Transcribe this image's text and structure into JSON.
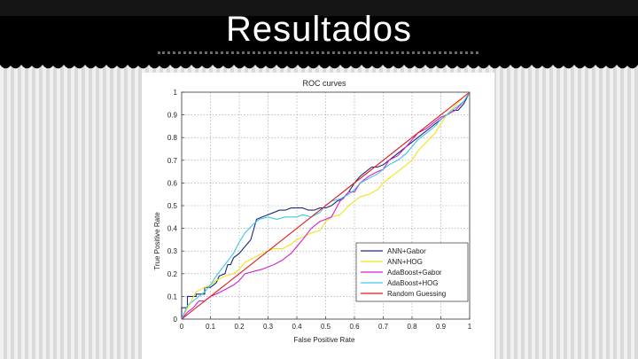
{
  "slide": {
    "title": "Resultados"
  },
  "chart_data": {
    "type": "line",
    "title": "ROC curves",
    "xlabel": "False Positive Rate",
    "ylabel": "True Positive Rate",
    "xlim": [
      0,
      1
    ],
    "ylim": [
      0,
      1
    ],
    "xticks": [
      "0",
      "0.1",
      "0.2",
      "0.3",
      "0.4",
      "0.5",
      "0.6",
      "0.7",
      "0.8",
      "0.9",
      "1"
    ],
    "yticks": [
      "0",
      "0.1",
      "0.2",
      "0.3",
      "0.4",
      "0.5",
      "0.6",
      "0.7",
      "0.8",
      "0.9",
      "1"
    ],
    "grid": true,
    "legend_position": "bottom-right",
    "series": [
      {
        "name": "ANN+Gabor",
        "color": "#1a2a80",
        "x": [
          0,
          0,
          0.02,
          0.02,
          0.05,
          0.05,
          0.08,
          0.08,
          0.1,
          0.12,
          0.13,
          0.15,
          0.16,
          0.17,
          0.18,
          0.2,
          0.22,
          0.24,
          0.26,
          0.28,
          0.3,
          0.32,
          0.34,
          0.36,
          0.38,
          0.4,
          0.42,
          0.44,
          0.46,
          0.48,
          0.5,
          0.52,
          0.54,
          0.56,
          0.58,
          0.6,
          0.62,
          0.64,
          0.66,
          0.68,
          0.7,
          0.72,
          0.74,
          0.76,
          0.78,
          0.8,
          0.82,
          0.84,
          0.86,
          0.88,
          0.9,
          0.92,
          0.94,
          0.96,
          0.98,
          1
        ],
        "y": [
          0,
          0.05,
          0.05,
          0.1,
          0.1,
          0.11,
          0.11,
          0.14,
          0.14,
          0.16,
          0.19,
          0.2,
          0.24,
          0.24,
          0.27,
          0.29,
          0.32,
          0.35,
          0.44,
          0.45,
          0.46,
          0.47,
          0.48,
          0.48,
          0.49,
          0.49,
          0.49,
          0.48,
          0.48,
          0.49,
          0.49,
          0.5,
          0.52,
          0.53,
          0.56,
          0.6,
          0.63,
          0.65,
          0.67,
          0.67,
          0.68,
          0.7,
          0.72,
          0.74,
          0.76,
          0.78,
          0.8,
          0.82,
          0.84,
          0.86,
          0.88,
          0.9,
          0.92,
          0.92,
          0.95,
          1.0
        ]
      },
      {
        "name": "ANN+HOG",
        "color": "#f2e21c",
        "x": [
          0,
          0.05,
          0.08,
          0.1,
          0.12,
          0.15,
          0.18,
          0.2,
          0.22,
          0.25,
          0.28,
          0.3,
          0.32,
          0.35,
          0.38,
          0.4,
          0.42,
          0.45,
          0.48,
          0.5,
          0.52,
          0.55,
          0.58,
          0.6,
          0.62,
          0.65,
          0.68,
          0.7,
          0.72,
          0.75,
          0.78,
          0.8,
          0.82,
          0.85,
          0.88,
          0.9,
          0.92,
          0.95,
          0.98,
          1
        ],
        "y": [
          0,
          0.12,
          0.14,
          0.15,
          0.17,
          0.19,
          0.2,
          0.22,
          0.25,
          0.27,
          0.29,
          0.3,
          0.31,
          0.31,
          0.33,
          0.35,
          0.36,
          0.38,
          0.39,
          0.43,
          0.45,
          0.46,
          0.5,
          0.52,
          0.54,
          0.55,
          0.57,
          0.6,
          0.62,
          0.65,
          0.68,
          0.7,
          0.74,
          0.78,
          0.82,
          0.86,
          0.9,
          0.94,
          0.98,
          1.0
        ]
      },
      {
        "name": "AdaBoost+Gabor",
        "color": "#d41fd0",
        "x": [
          0,
          0.02,
          0.04,
          0.06,
          0.08,
          0.1,
          0.12,
          0.15,
          0.18,
          0.2,
          0.22,
          0.25,
          0.28,
          0.3,
          0.32,
          0.35,
          0.38,
          0.4,
          0.42,
          0.45,
          0.48,
          0.5,
          0.52,
          0.55,
          0.58,
          0.6,
          0.62,
          0.65,
          0.68,
          0.7,
          0.72,
          0.75,
          0.78,
          0.8,
          0.82,
          0.85,
          0.88,
          0.9,
          0.92,
          0.95,
          0.98,
          1
        ],
        "y": [
          0,
          0.03,
          0.05,
          0.08,
          0.08,
          0.1,
          0.11,
          0.13,
          0.15,
          0.17,
          0.2,
          0.21,
          0.22,
          0.23,
          0.24,
          0.26,
          0.29,
          0.32,
          0.35,
          0.4,
          0.43,
          0.44,
          0.45,
          0.52,
          0.56,
          0.56,
          0.6,
          0.63,
          0.65,
          0.66,
          0.7,
          0.72,
          0.76,
          0.79,
          0.82,
          0.84,
          0.87,
          0.89,
          0.9,
          0.92,
          0.96,
          1.0
        ]
      },
      {
        "name": "AdaBoost+HOG",
        "color": "#3ec6e8",
        "x": [
          0,
          0.02,
          0.05,
          0.08,
          0.1,
          0.12,
          0.15,
          0.18,
          0.2,
          0.22,
          0.25,
          0.27,
          0.3,
          0.33,
          0.36,
          0.4,
          0.42,
          0.45,
          0.48,
          0.5,
          0.52,
          0.55,
          0.58,
          0.6,
          0.62,
          0.65,
          0.68,
          0.7,
          0.72,
          0.75,
          0.78,
          0.8,
          0.82,
          0.85,
          0.88,
          0.9,
          0.92,
          0.95,
          0.98,
          1
        ],
        "y": [
          0,
          0.06,
          0.09,
          0.12,
          0.15,
          0.19,
          0.24,
          0.29,
          0.34,
          0.38,
          0.42,
          0.44,
          0.45,
          0.44,
          0.45,
          0.45,
          0.46,
          0.45,
          0.47,
          0.5,
          0.52,
          0.53,
          0.55,
          0.57,
          0.6,
          0.62,
          0.64,
          0.66,
          0.68,
          0.7,
          0.73,
          0.76,
          0.79,
          0.82,
          0.85,
          0.88,
          0.9,
          0.93,
          0.96,
          1.0
        ]
      },
      {
        "name": "Random Guessing",
        "color": "#e01b1b",
        "x": [
          0,
          1
        ],
        "y": [
          0,
          1
        ]
      }
    ]
  }
}
